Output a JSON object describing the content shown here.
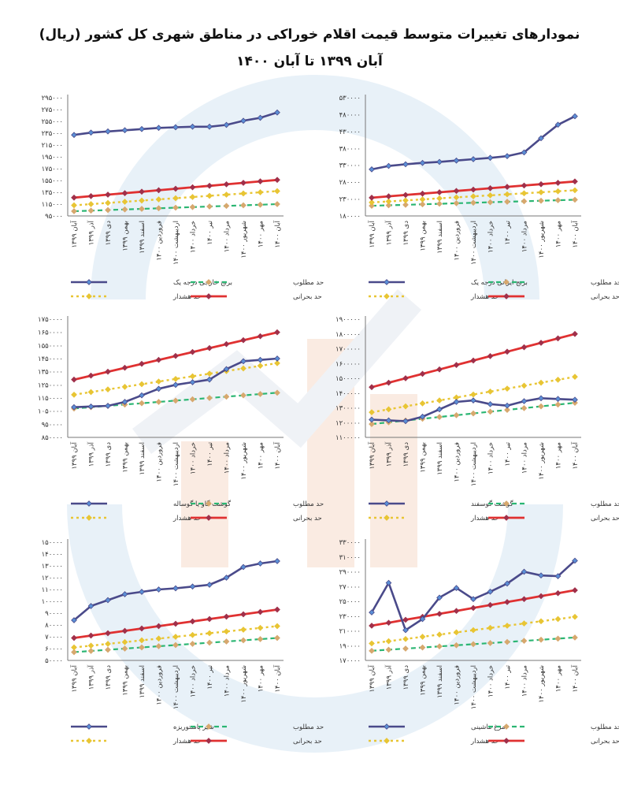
{
  "page": {
    "title_line1": "نمودارهای تغییرات متوسط قیمت اقلام خوراکی در مناطق شهری کل کشور (ریال)",
    "title_line2": "آبان ۱۳۹۹ تا آبان ۱۴۰۰"
  },
  "legend_names": {
    "target": "حد مطلوب",
    "warning": "حد هشدار",
    "critical": "حد بحرانی"
  },
  "colors": {
    "main": "#4a4a8a",
    "main_marker": "#5b8fd6",
    "target": "#2bb673",
    "target_marker": "#d7a86e",
    "warning": "#e8c534",
    "critical": "#e03131",
    "critical_marker": "#a0304a",
    "axis": "#777777",
    "watermark_blue": "#d6e6f3",
    "watermark_orange": "#f7dccb"
  },
  "x_categories": [
    "آبان ۱۳۹۹",
    "آذر ۱۳۹۹",
    "دی ۱۳۹۹",
    "بهمن ۱۳۹۹",
    "اسفند ۱۳۹۹",
    "فروردین ۱۴۰۰",
    "اردیبهشت ۱۴۰۰",
    "خرداد ۱۴۰۰",
    "تیر ۱۴۰۰",
    "مرداد ۱۴۰۰",
    "شهریور ۱۴۰۰",
    "مهر ۱۴۰۰",
    "آبان ۱۴۰۰"
  ],
  "chart_data": [
    {
      "type": "line",
      "ylim": [
        95000,
        295000
      ],
      "yticks": [
        "۹۵۰۰۰",
        "۱۱۵۰۰۰",
        "۱۳۵۰۰۰",
        "۱۵۵۰۰۰",
        "۱۷۵۰۰۰",
        "۱۹۵۰۰۰",
        "۲۱۵۰۰۰",
        "۲۳۵۰۰۰",
        "۲۵۵۰۰۰",
        "۲۷۵۰۰۰",
        "۲۹۵۰۰۰"
      ],
      "series": [
        {
          "name": "برنج خارجی درجه یک",
          "values": [
            232000,
            236000,
            238000,
            240000,
            242000,
            244000,
            245000,
            246000,
            246000,
            249000,
            256000,
            261000,
            270000
          ]
        },
        {
          "name": "حد مطلوب",
          "values": [
            103000,
            104000,
            105000,
            106000,
            107000,
            108000,
            109000,
            110000,
            111000,
            112000,
            113000,
            114000,
            115000
          ]
        },
        {
          "name": "حد هشدار",
          "values": [
            113000,
            115000,
            117000,
            119000,
            121000,
            123000,
            125000,
            127000,
            129000,
            131000,
            133000,
            135000,
            137000
          ]
        },
        {
          "name": "حد بحرانی",
          "values": [
            126000,
            128500,
            131000,
            133500,
            136000,
            138500,
            141000,
            143500,
            146000,
            148500,
            151000,
            153500,
            156000
          ]
        }
      ]
    },
    {
      "type": "line",
      "ylim": [
        180000,
        530000
      ],
      "yticks": [
        "۱۸۰۰۰۰",
        "۲۳۰۰۰۰",
        "۲۸۰۰۰۰",
        "۳۳۰۰۰۰",
        "۳۸۰۰۰۰",
        "۴۳۰۰۰۰",
        "۴۸۰۰۰۰",
        "۵۳۰۰۰۰"
      ],
      "series": [
        {
          "name": "برنج ایرانی درجه یک",
          "values": [
            318000,
            328000,
            333000,
            337000,
            340000,
            344000,
            348000,
            352000,
            357000,
            368000,
            410000,
            450000,
            475000
          ]
        },
        {
          "name": "حد مطلوب",
          "values": [
            210000,
            211500,
            213000,
            214500,
            216000,
            217500,
            219000,
            220500,
            222000,
            223500,
            225000,
            226500,
            228000
          ]
        },
        {
          "name": "حد هشدار",
          "values": [
            220000,
            223000,
            226000,
            229000,
            232000,
            235000,
            238000,
            241000,
            244000,
            247000,
            250000,
            253000,
            256000
          ]
        },
        {
          "name": "حد بحرانی",
          "values": [
            234000,
            238000,
            242000,
            246000,
            250000,
            254000,
            258000,
            262000,
            266000,
            270000,
            274000,
            278000,
            282000
          ]
        }
      ]
    },
    {
      "type": "line",
      "ylim": [
        850000,
        1750000
      ],
      "yticks": [
        "۸۵۰۰۰۰",
        "۹۵۰۰۰۰",
        "۱۰۵۰۰۰۰",
        "۱۱۵۰۰۰۰",
        "۱۲۵۰۰۰۰",
        "۱۳۵۰۰۰۰",
        "۱۴۵۰۰۰۰",
        "۱۵۵۰۰۰۰",
        "۱۶۵۰۰۰۰",
        "۱۷۵۰۰۰۰"
      ],
      "series": [
        {
          "name": "گوشت گاو یا گوساله",
          "values": [
            1080000,
            1085000,
            1090000,
            1120000,
            1170000,
            1220000,
            1250000,
            1270000,
            1290000,
            1370000,
            1430000,
            1440000,
            1450000
          ]
        },
        {
          "name": "حد مطلوب",
          "values": [
            1070000,
            1080000,
            1090000,
            1100000,
            1110000,
            1120000,
            1130000,
            1140000,
            1150000,
            1160000,
            1170000,
            1180000,
            1190000
          ]
        },
        {
          "name": "حد هشدار",
          "values": [
            1175000,
            1195000,
            1215000,
            1235000,
            1255000,
            1275000,
            1295000,
            1315000,
            1335000,
            1355000,
            1375000,
            1395000,
            1415000
          ]
        },
        {
          "name": "حد بحرانی",
          "values": [
            1290000,
            1320000,
            1350000,
            1380000,
            1410000,
            1440000,
            1470000,
            1500000,
            1530000,
            1560000,
            1590000,
            1620000,
            1650000
          ]
        }
      ]
    },
    {
      "type": "line",
      "ylim": [
        1100000,
        1900000
      ],
      "yticks": [
        "۱۱۰۰۰۰۰",
        "۱۲۰۰۰۰۰",
        "۱۳۰۰۰۰۰",
        "۱۴۰۰۰۰۰",
        "۱۵۰۰۰۰۰",
        "۱۶۰۰۰۰۰",
        "۱۷۰۰۰۰۰",
        "۱۸۰۰۰۰۰",
        "۱۹۰۰۰۰۰"
      ],
      "series": [
        {
          "name": "گوشت گوسفند",
          "values": [
            1220000,
            1215000,
            1210000,
            1240000,
            1290000,
            1340000,
            1350000,
            1325000,
            1315000,
            1345000,
            1365000,
            1360000,
            1355000
          ]
        },
        {
          "name": "حد مطلوب",
          "values": [
            1190000,
            1202000,
            1214000,
            1226000,
            1238000,
            1250000,
            1262000,
            1274000,
            1286000,
            1298000,
            1310000,
            1322000,
            1334000
          ]
        },
        {
          "name": "حد هشدار",
          "values": [
            1270000,
            1290000,
            1310000,
            1330000,
            1350000,
            1370000,
            1390000,
            1410000,
            1430000,
            1450000,
            1470000,
            1490000,
            1510000
          ]
        },
        {
          "name": "حد بحرانی",
          "values": [
            1440000,
            1470000,
            1500000,
            1530000,
            1560000,
            1590000,
            1620000,
            1650000,
            1680000,
            1710000,
            1740000,
            1770000,
            1800000
          ]
        }
      ]
    },
    {
      "type": "line",
      "ylim": [
        50000,
        150000
      ],
      "yticks": [
        "۵۰۰۰۰",
        "۶۰۰۰۰",
        "۷۰۰۰۰",
        "۸۰۰۰۰",
        "۹۰۰۰۰",
        "۱۰۰۰۰۰",
        "۱۱۰۰۰۰",
        "۱۲۰۰۰۰",
        "۱۳۰۰۰۰",
        "۱۴۰۰۰۰",
        "۱۵۰۰۰۰"
      ],
      "series": [
        {
          "name": "شیر پاستوریزه",
          "values": [
            84000,
            96000,
            101000,
            106000,
            108000,
            110000,
            111000,
            112500,
            114000,
            120000,
            129000,
            132000,
            134000
          ]
        },
        {
          "name": "حد مطلوب",
          "values": [
            57000,
            58000,
            59000,
            60000,
            61000,
            62000,
            63000,
            64000,
            65000,
            66000,
            67000,
            68000,
            69000
          ]
        },
        {
          "name": "حد هشدار",
          "values": [
            61000,
            62500,
            64000,
            65500,
            67000,
            68500,
            70000,
            71500,
            73000,
            74500,
            76000,
            77500,
            79000
          ]
        },
        {
          "name": "حد بحرانی",
          "values": [
            69000,
            71000,
            73000,
            75000,
            77000,
            79000,
            81000,
            83000,
            85000,
            87000,
            89000,
            91000,
            93000
          ]
        }
      ]
    },
    {
      "type": "line",
      "ylim": [
        170000,
        330000
      ],
      "yticks": [
        "۱۷۰۰۰۰",
        "۱۹۰۰۰۰",
        "۲۱۰۰۰۰",
        "۲۳۰۰۰۰",
        "۲۵۰۰۰۰",
        "۲۷۰۰۰۰",
        "۲۹۰۰۰۰",
        "۳۱۰۰۰۰",
        "۳۳۰۰۰۰"
      ],
      "series": [
        {
          "name": "مرغ ماشینی",
          "values": [
            235000,
            275000,
            211000,
            226000,
            255000,
            268000,
            253000,
            263000,
            274000,
            290000,
            285000,
            284000,
            305000
          ]
        },
        {
          "name": "حد مطلوب",
          "values": [
            183000,
            184500,
            186000,
            187500,
            189000,
            190500,
            192000,
            193500,
            195000,
            196500,
            198000,
            199500,
            201000
          ]
        },
        {
          "name": "حد هشدار",
          "values": [
            193000,
            196000,
            199000,
            202000,
            205000,
            208000,
            211000,
            214000,
            217000,
            220000,
            223000,
            226000,
            229000
          ]
        },
        {
          "name": "حد بحرانی",
          "values": [
            217000,
            221000,
            225000,
            229000,
            233000,
            237000,
            241000,
            245000,
            249000,
            253000,
            257000,
            261000,
            265000
          ]
        }
      ]
    }
  ]
}
